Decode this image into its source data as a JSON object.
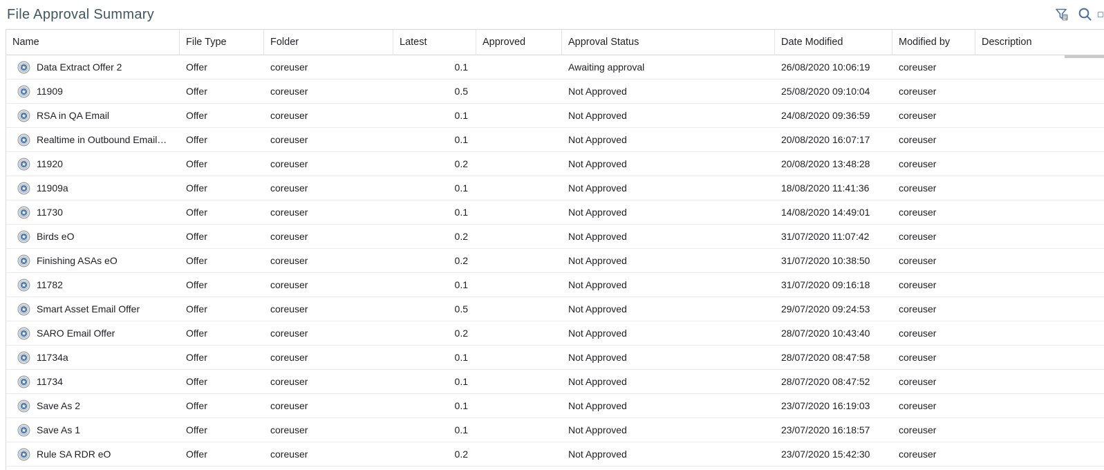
{
  "header": {
    "title": "File Approval Summary",
    "icons": {
      "filter": "filter-icon",
      "search": "search-icon",
      "partial": "clipboard-icon-partial"
    }
  },
  "colors": {
    "accent_blue": "#4a72ad",
    "title_teal": "#42565e",
    "icon_gray": "#8e969d",
    "star_blue": "#4d7ab5"
  },
  "table": {
    "columns": [
      {
        "label": "Name"
      },
      {
        "label": "File Type"
      },
      {
        "label": "Folder"
      },
      {
        "label": "Latest"
      },
      {
        "label": "Approved"
      },
      {
        "label": "Approval Status"
      },
      {
        "label": "Date Modified"
      },
      {
        "label": "Modified by"
      },
      {
        "label": "Description"
      }
    ],
    "rows": [
      {
        "name": "Data Extract Offer 2",
        "file_type": "Offer",
        "folder": "coreuser",
        "latest": "0.1",
        "approved": "",
        "approval_status": "Awaiting approval",
        "date_modified": "26/08/2020 10:06:19",
        "modified_by": "coreuser",
        "description": ""
      },
      {
        "name": "11909",
        "file_type": "Offer",
        "folder": "coreuser",
        "latest": "0.5",
        "approved": "",
        "approval_status": "Not Approved",
        "date_modified": "25/08/2020 09:10:04",
        "modified_by": "coreuser",
        "description": ""
      },
      {
        "name": "RSA in QA Email",
        "file_type": "Offer",
        "folder": "coreuser",
        "latest": "0.1",
        "approved": "",
        "approval_status": "Not Approved",
        "date_modified": "24/08/2020 09:36:59",
        "modified_by": "coreuser",
        "description": ""
      },
      {
        "name": "Realtime in Outbound Email…",
        "file_type": "Offer",
        "folder": "coreuser",
        "latest": "0.1",
        "approved": "",
        "approval_status": "Not Approved",
        "date_modified": "20/08/2020 16:07:17",
        "modified_by": "coreuser",
        "description": ""
      },
      {
        "name": "11920",
        "file_type": "Offer",
        "folder": "coreuser",
        "latest": "0.2",
        "approved": "",
        "approval_status": "Not Approved",
        "date_modified": "20/08/2020 13:48:28",
        "modified_by": "coreuser",
        "description": ""
      },
      {
        "name": "11909a",
        "file_type": "Offer",
        "folder": "coreuser",
        "latest": "0.1",
        "approved": "",
        "approval_status": "Not Approved",
        "date_modified": "18/08/2020 11:41:36",
        "modified_by": "coreuser",
        "description": ""
      },
      {
        "name": "11730",
        "file_type": "Offer",
        "folder": "coreuser",
        "latest": "0.1",
        "approved": "",
        "approval_status": "Not Approved",
        "date_modified": "14/08/2020 14:49:01",
        "modified_by": "coreuser",
        "description": ""
      },
      {
        "name": "Birds eO",
        "file_type": "Offer",
        "folder": "coreuser",
        "latest": "0.2",
        "approved": "",
        "approval_status": "Not Approved",
        "date_modified": "31/07/2020 11:07:42",
        "modified_by": "coreuser",
        "description": ""
      },
      {
        "name": "Finishing ASAs eO",
        "file_type": "Offer",
        "folder": "coreuser",
        "latest": "0.2",
        "approved": "",
        "approval_status": "Not Approved",
        "date_modified": "31/07/2020 10:38:50",
        "modified_by": "coreuser",
        "description": ""
      },
      {
        "name": "11782",
        "file_type": "Offer",
        "folder": "coreuser",
        "latest": "0.1",
        "approved": "",
        "approval_status": "Not Approved",
        "date_modified": "31/07/2020 09:16:18",
        "modified_by": "coreuser",
        "description": ""
      },
      {
        "name": "Smart Asset Email Offer",
        "file_type": "Offer",
        "folder": "coreuser",
        "latest": "0.5",
        "approved": "",
        "approval_status": "Not Approved",
        "date_modified": "29/07/2020 09:24:53",
        "modified_by": "coreuser",
        "description": ""
      },
      {
        "name": "SARO Email Offer",
        "file_type": "Offer",
        "folder": "coreuser",
        "latest": "0.2",
        "approved": "",
        "approval_status": "Not Approved",
        "date_modified": "28/07/2020 10:43:40",
        "modified_by": "coreuser",
        "description": ""
      },
      {
        "name": "11734a",
        "file_type": "Offer",
        "folder": "coreuser",
        "latest": "0.1",
        "approved": "",
        "approval_status": "Not Approved",
        "date_modified": "28/07/2020 08:47:58",
        "modified_by": "coreuser",
        "description": ""
      },
      {
        "name": "11734",
        "file_type": "Offer",
        "folder": "coreuser",
        "latest": "0.1",
        "approved": "",
        "approval_status": "Not Approved",
        "date_modified": "28/07/2020 08:47:52",
        "modified_by": "coreuser",
        "description": ""
      },
      {
        "name": "Save As 2",
        "file_type": "Offer",
        "folder": "coreuser",
        "latest": "0.1",
        "approved": "",
        "approval_status": "Not Approved",
        "date_modified": "23/07/2020 16:19:03",
        "modified_by": "coreuser",
        "description": ""
      },
      {
        "name": "Save As 1",
        "file_type": "Offer",
        "folder": "coreuser",
        "latest": "0.1",
        "approved": "",
        "approval_status": "Not Approved",
        "date_modified": "23/07/2020 16:18:57",
        "modified_by": "coreuser",
        "description": ""
      },
      {
        "name": "Rule SA RDR eO",
        "file_type": "Offer",
        "folder": "coreuser",
        "latest": "0.2",
        "approved": "",
        "approval_status": "Not Approved",
        "date_modified": "23/07/2020 15:42:30",
        "modified_by": "coreuser",
        "description": ""
      }
    ]
  }
}
